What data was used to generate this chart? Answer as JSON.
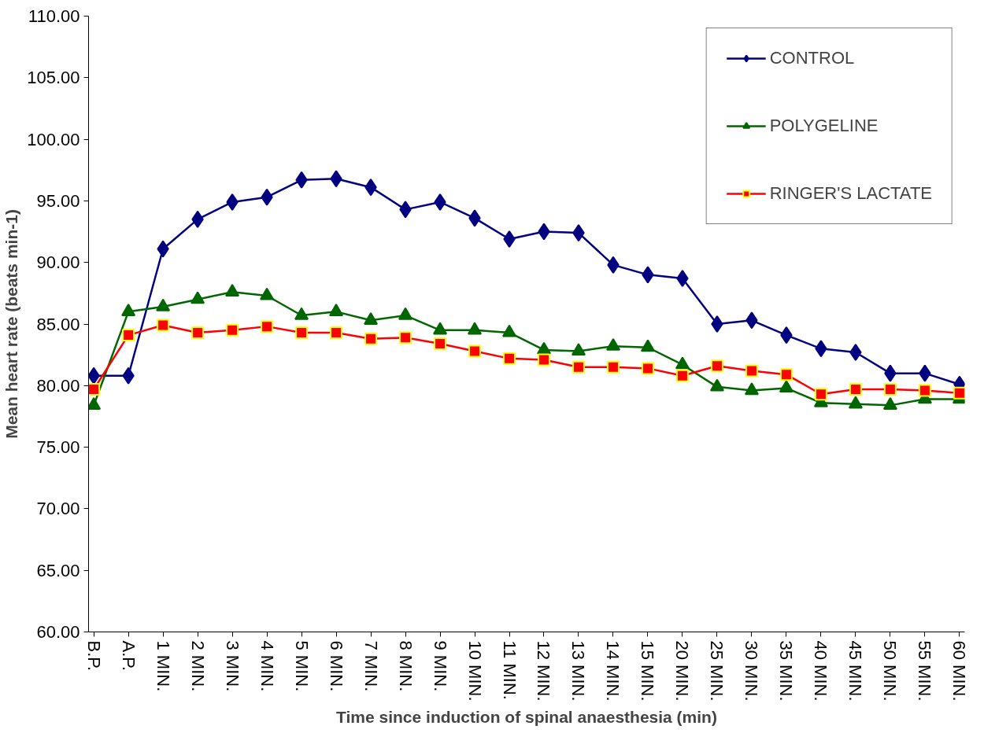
{
  "chart_data": {
    "type": "line",
    "xlabel": "Time since induction of spinal anaesthesia (min)",
    "ylabel": "Mean heart rate (beats min-1)",
    "categories": [
      "B.P.",
      "A.P.",
      "1 MIN.",
      "2 MIN.",
      "3 MIN.",
      "4 MIN.",
      "5 MIN.",
      "6 MIN.",
      "7 MIN.",
      "8 MIN.",
      "9 MIN.",
      "10 MIN.",
      "11 MIN.",
      "12 MIN.",
      "13 MIN.",
      "14 MIN.",
      "15 MIN.",
      "20 MIN.",
      "25 MIN.",
      "30 MIN.",
      "35 MIN.",
      "40 MIN.",
      "45 MIN.",
      "50 MIN.",
      "55 MIN.",
      "60 MIN."
    ],
    "series": [
      {
        "name": "CONTROL",
        "color": "#000080",
        "marker": "diamond",
        "values": [
          80.8,
          80.8,
          91.1,
          93.5,
          94.9,
          95.3,
          96.7,
          96.8,
          96.1,
          94.3,
          94.9,
          93.6,
          91.9,
          92.5,
          92.4,
          89.8,
          89.0,
          88.7,
          85.0,
          85.3,
          84.1,
          83.0,
          82.7,
          81.0,
          81.0,
          80.1
        ]
      },
      {
        "name": "POLYGELINE",
        "color": "#006600",
        "marker": "triangle",
        "values": [
          78.4,
          86.0,
          86.4,
          87.0,
          87.6,
          87.3,
          85.7,
          86.0,
          85.3,
          85.7,
          84.5,
          84.5,
          84.3,
          82.9,
          82.8,
          83.2,
          83.1,
          81.7,
          79.9,
          79.6,
          79.8,
          78.6,
          78.5,
          78.4,
          78.9,
          78.9
        ]
      },
      {
        "name": "RINGER'S LACTATE",
        "color": "#ff0000",
        "marker": "square",
        "values": [
          79.7,
          84.1,
          84.9,
          84.3,
          84.5,
          84.8,
          84.3,
          84.3,
          83.8,
          83.9,
          83.4,
          82.8,
          82.2,
          82.1,
          81.5,
          81.5,
          81.4,
          80.8,
          81.6,
          81.2,
          80.9,
          79.3,
          79.7,
          79.7,
          79.6,
          79.4
        ]
      }
    ],
    "ylim": [
      60,
      110
    ],
    "yticks": [
      {
        "value": 60,
        "label": "60.00"
      },
      {
        "value": 65,
        "label": "65.00"
      },
      {
        "value": 70,
        "label": "70.00"
      },
      {
        "value": 75,
        "label": "75.00"
      },
      {
        "value": 80,
        "label": "80.00"
      },
      {
        "value": 85,
        "label": "85.00"
      },
      {
        "value": 90,
        "label": "90.00"
      },
      {
        "value": 95,
        "label": "95.00"
      },
      {
        "value": 100,
        "label": "100.00"
      },
      {
        "value": 105,
        "label": "105.00"
      },
      {
        "value": 110,
        "label": "110.00"
      }
    ],
    "grid": false,
    "legend": "top right",
    "line_style": "solid"
  }
}
